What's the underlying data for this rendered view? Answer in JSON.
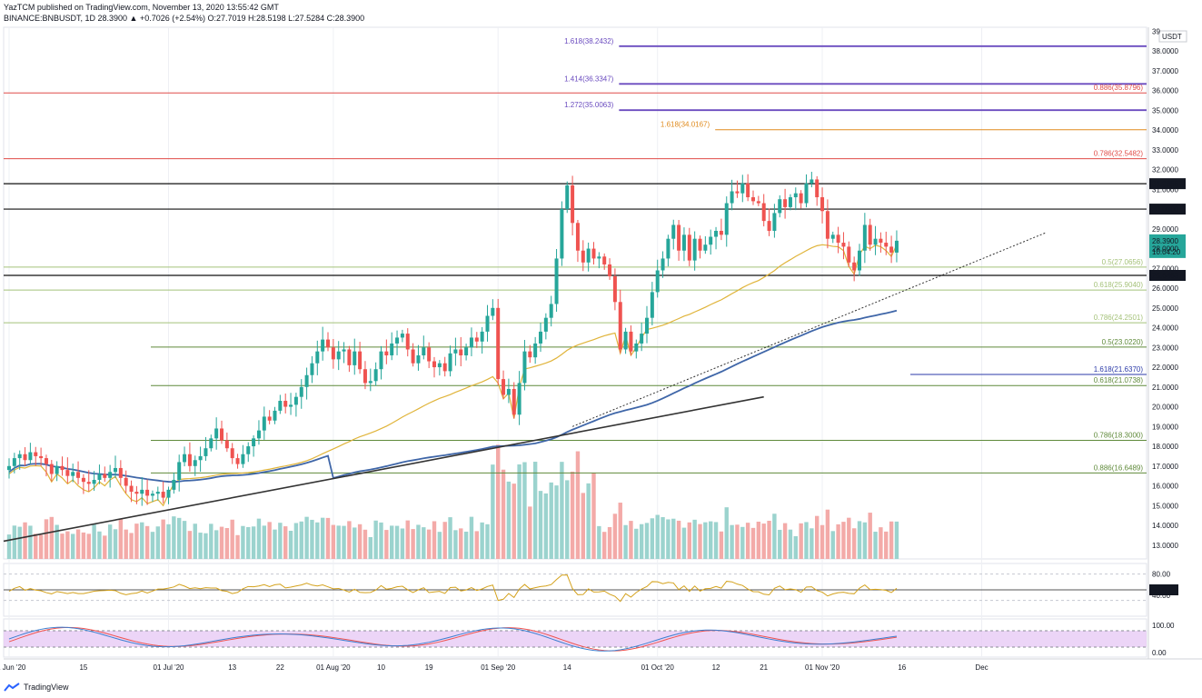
{
  "header": {
    "publisher_line": "YazTCM published on TradingView.com, November 13, 2020 13:55:42 GMT",
    "ohlc_line": "BINANCE:BNBUSDT, 1D  28.3900  ▲ +0.7026 (+2.54%)  O:27.7019  H:28.5198  L:27.5284  C:28.3900"
  },
  "footer": {
    "brand": "TradingView",
    "logo_icon": "tradingview-logo-icon"
  },
  "colors": {
    "up": "#26a69a",
    "down": "#ef5350",
    "vol_up": "#9bd3ce",
    "vol_down": "#f3aaa8",
    "ma_yellow": "#e0b43a",
    "ma_blue": "#3f66a8",
    "rsi": "#d4a21c",
    "stoch_k": "#3d7fd0",
    "stoch_d": "#ef5350",
    "stoch_band": "#e7cbf5",
    "fib_purple": "#6a4bbf",
    "fib_red": "#e04c48",
    "fib_orange": "#e08b1e",
    "fib_green": "#5f8a3a",
    "fib_blue": "#2b3aa8",
    "fib_lightgreen": "#a5c27a"
  },
  "chart_data": {
    "type": "candlestick",
    "symbol": "BINANCE:BNBUSDT",
    "interval": "1D",
    "currency": "USDT",
    "ylim": [
      12.3,
      39.2
    ],
    "price_ticks": [
      "39",
      "38.0000",
      "37.0000",
      "36.0000",
      "35.0000",
      "34.0000",
      "33.0000",
      "32.0000",
      "31.0000",
      "30.0000",
      "29.0000",
      "28.0000",
      "27.0000",
      "26.0000",
      "25.0000",
      "24.0000",
      "23.0000",
      "22.0000",
      "21.0000",
      "20.0000",
      "19.0000",
      "18.0000",
      "17.0000",
      "16.0000",
      "15.0000",
      "14.0000",
      "13.0000"
    ],
    "price_tick_values": [
      39,
      38,
      37,
      36,
      35,
      34,
      33,
      32,
      31,
      30,
      29,
      28,
      27,
      26,
      25,
      24,
      23,
      22,
      21,
      20,
      19,
      18,
      17,
      16,
      15,
      14,
      13
    ],
    "x_ticks": [
      {
        "day": 0,
        "label": "01 Jun '20"
      },
      {
        "day": 14,
        "label": "15"
      },
      {
        "day": 30,
        "label": "01 Jul '20"
      },
      {
        "day": 42,
        "label": "13"
      },
      {
        "day": 51,
        "label": "22"
      },
      {
        "day": 61,
        "label": "01 Aug '20"
      },
      {
        "day": 70,
        "label": "10"
      },
      {
        "day": 79,
        "label": "19"
      },
      {
        "day": 92,
        "label": "01 Sep '20"
      },
      {
        "day": 105,
        "label": "14"
      },
      {
        "day": 122,
        "label": "01 Oct '20"
      },
      {
        "day": 133,
        "label": "12"
      },
      {
        "day": 142,
        "label": "21"
      },
      {
        "day": 153,
        "label": "01 Nov '20"
      },
      {
        "day": 168,
        "label": "16"
      },
      {
        "day": 183,
        "label": "Dec"
      }
    ],
    "closes": [
      17.0,
      17.4,
      17.6,
      17.3,
      17.7,
      17.5,
      17.4,
      17.1,
      16.6,
      17.0,
      16.8,
      16.5,
      16.7,
      16.4,
      16.2,
      16.1,
      16.3,
      16.6,
      16.4,
      16.7,
      16.9,
      16.4,
      16.0,
      15.7,
      15.6,
      15.8,
      15.5,
      15.6,
      15.7,
      15.4,
      15.8,
      16.3,
      17.2,
      17.6,
      17.0,
      17.3,
      17.5,
      17.9,
      18.4,
      18.9,
      18.3,
      17.9,
      17.4,
      17.1,
      17.6,
      18.0,
      18.4,
      18.8,
      19.5,
      19.3,
      19.8,
      20.3,
      20.0,
      20.1,
      20.5,
      21.0,
      21.6,
      22.2,
      22.8,
      23.4,
      23.0,
      22.4,
      22.8,
      22.9,
      22.1,
      22.8,
      21.9,
      21.2,
      21.3,
      21.9,
      22.8,
      22.6,
      23.2,
      23.5,
      23.7,
      22.9,
      22.2,
      22.6,
      23.0,
      22.3,
      22.0,
      22.2,
      21.8,
      22.7,
      22.9,
      22.6,
      23.0,
      23.5,
      23.3,
      23.8,
      24.6,
      25.0,
      21.4,
      20.6,
      20.9,
      19.6,
      21.2,
      22.8,
      22.5,
      23.2,
      23.8,
      24.5,
      25.2,
      27.5,
      30.0,
      31.2,
      29.3,
      27.9,
      27.3,
      28.0,
      27.5,
      27.6,
      27.2,
      26.6,
      25.3,
      22.9,
      23.8,
      22.8,
      23.2,
      23.7,
      24.5,
      25.8,
      26.9,
      27.5,
      28.5,
      29.2,
      27.9,
      28.7,
      27.4,
      28.5,
      27.9,
      28.2,
      28.6,
      28.9,
      28.7,
      30.3,
      30.9,
      30.8,
      31.3,
      30.6,
      30.4,
      30.3,
      29.4,
      28.9,
      29.8,
      30.5,
      30.1,
      30.6,
      30.8,
      30.3,
      31.3,
      31.5,
      30.6,
      29.9,
      28.5,
      28.7,
      28.3,
      28.1,
      27.3,
      26.9,
      27.9,
      29.2,
      28.2,
      28.5,
      28.3,
      28.1,
      27.8,
      28.4
    ]
  },
  "fib_levels": [
    {
      "label": "1.618(38.2432)",
      "value": 38.2432,
      "color": "#6a4bbf",
      "side": "left",
      "x0": 0.515
    },
    {
      "label": "1.414(36.3347)",
      "value": 36.3347,
      "color": "#6a4bbf",
      "side": "left",
      "x0": 0.515
    },
    {
      "label": "1.272(35.0063)",
      "value": 35.0063,
      "color": "#6a4bbf",
      "side": "left",
      "x0": 0.515
    },
    {
      "label": "0.886(35.8796)",
      "value": 35.8796,
      "color": "#e04c48",
      "side": "right"
    },
    {
      "label": "1.618(34.0167)",
      "value": 34.0167,
      "color": "#e08b1e",
      "side": "left",
      "x0": 0.595
    },
    {
      "label": "0.786(32.5482)",
      "value": 32.5482,
      "color": "#e04c48",
      "side": "right"
    },
    {
      "label": "0.5(27.0656)",
      "value": 27.0656,
      "color": "#a5c27a",
      "side": "right"
    },
    {
      "label": "0.618(25.9040)",
      "value": 25.904,
      "color": "#a5c27a",
      "side": "right"
    },
    {
      "label": "0.786(24.2501)",
      "value": 24.2501,
      "color": "#a5c27a",
      "side": "right"
    },
    {
      "label": "0.5(23.0220)",
      "value": 23.022,
      "color": "#5f8a3a",
      "side": "right"
    },
    {
      "label": "1.618(21.6370)",
      "value": 21.637,
      "color": "#2b3aa8",
      "side": "right"
    },
    {
      "label": "0.618(21.0738)",
      "value": 21.0738,
      "color": "#5f8a3a",
      "side": "right"
    },
    {
      "label": "0.786(18.3000)",
      "value": 18.3,
      "color": "#5f8a3a",
      "side": "right"
    },
    {
      "label": "0.886(16.6489)",
      "value": 16.6489,
      "color": "#5f8a3a",
      "side": "right"
    }
  ],
  "sr_lines": [
    {
      "value": 31.2856,
      "label": "31.2856"
    },
    {
      "value": 30.0,
      "label": "30.0000"
    },
    {
      "value": 26.6463,
      "label": "26.6463"
    }
  ],
  "price_tags": {
    "last": "28.3900",
    "countdown": "10:04:20",
    "usdt": "USDT"
  },
  "rsi": {
    "ticks": [
      "80.00",
      "50.00",
      "40.00"
    ],
    "tick_values": [
      80,
      50,
      40
    ],
    "current_label": "50.00"
  },
  "stoch": {
    "ticks": [
      "100.00",
      "0.00"
    ],
    "tick_values": [
      100,
      0
    ]
  }
}
